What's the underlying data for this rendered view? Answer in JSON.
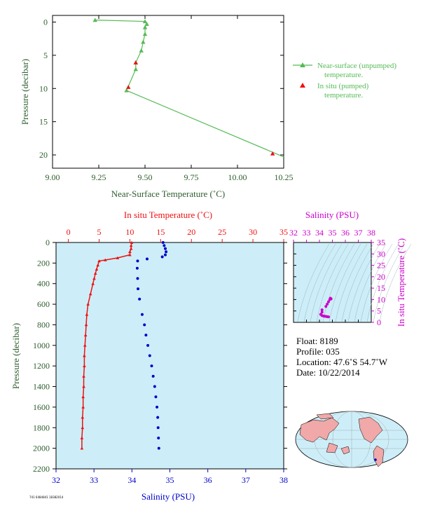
{
  "colors": {
    "top_green": "#55bb55",
    "axis_green": "#2e5e2e",
    "temp_red": "#ee1111",
    "sal_blue": "#0000cc",
    "salinity_magenta": "#cc00cc",
    "panel_bg": "#cdeef8"
  },
  "footer_code": "741 6484841 18382014",
  "meta": {
    "float": "Float:  8189",
    "profile": "Profile:  035",
    "location": "Location:  47.6˚S  54.7˚W",
    "date": "Date:  10/22/2014"
  },
  "chart_data": [
    {
      "type": "line",
      "xlabel": "Near-Surface Temperature (˚C)",
      "ylabel": "Pressure (decibar)",
      "xlim": [
        9.0,
        10.25
      ],
      "ylim": [
        22,
        -1
      ],
      "xticks": [
        "9.00",
        "9.25",
        "9.50",
        "9.75",
        "10.00",
        "10.25"
      ],
      "yticks": [
        "0",
        "5",
        "10",
        "15",
        "20"
      ],
      "series": [
        {
          "name": "Near-surface (unpumped) temperature.",
          "marker": "triangle",
          "points": [
            [
              9.23,
              -0.3
            ],
            [
              9.5,
              -0.1
            ],
            [
              9.51,
              0.3
            ],
            [
              9.5,
              0.8
            ],
            [
              9.5,
              1.8
            ],
            [
              9.49,
              3.0
            ],
            [
              9.48,
              4.3
            ],
            [
              9.45,
              6.1
            ],
            [
              9.45,
              7.1
            ],
            [
              9.4,
              10.3
            ],
            [
              10.25,
              20.3
            ]
          ]
        },
        {
          "name": "In situ (pumped) temperature.",
          "marker": "triangle",
          "points": [
            [
              9.45,
              6.1
            ],
            [
              9.41,
              9.8
            ],
            [
              10.19,
              19.8
            ]
          ]
        }
      ],
      "legend": [
        {
          "line1": "Near-surface (unpumped)",
          "line2": "temperature."
        },
        {
          "line1": "In situ (pumped)",
          "line2": "temperature."
        }
      ]
    },
    {
      "type": "scatter",
      "xlabel_top": "In situ Temperature (˚C)",
      "xlabel_bottom": "Salinity (PSU)",
      "ylabel": "Pressure (decibar)",
      "temp_lim": [
        -2,
        35
      ],
      "sal_lim": [
        32,
        38
      ],
      "ylim": [
        0,
        2200
      ],
      "temp_ticks": [
        "0",
        "5",
        "10",
        "15",
        "20",
        "25",
        "30",
        "35"
      ],
      "sal_ticks": [
        "32",
        "33",
        "34",
        "35",
        "36",
        "37",
        "38"
      ],
      "y_ticks": [
        "0",
        "200",
        "400",
        "600",
        "800",
        "1000",
        "1200",
        "1400",
        "1600",
        "1800",
        "2000",
        "2200"
      ],
      "series": [
        {
          "name": "In situ Temperature (˚C)",
          "points": [
            [
              10.3,
              0
            ],
            [
              10.2,
              30
            ],
            [
              10.2,
              60
            ],
            [
              10.0,
              90
            ],
            [
              10.0,
              120
            ],
            [
              8.0,
              150
            ],
            [
              6.0,
              170
            ],
            [
              5.0,
              180
            ],
            [
              4.8,
              220
            ],
            [
              4.6,
              260
            ],
            [
              4.4,
              300
            ],
            [
              4.2,
              350
            ],
            [
              4.0,
              400
            ],
            [
              3.6,
              500
            ],
            [
              3.2,
              600
            ],
            [
              3.0,
              700
            ],
            [
              2.9,
              800
            ],
            [
              2.8,
              900
            ],
            [
              2.7,
              1000
            ],
            [
              2.6,
              1100
            ],
            [
              2.6,
              1200
            ],
            [
              2.5,
              1300
            ],
            [
              2.5,
              1400
            ],
            [
              2.4,
              1500
            ],
            [
              2.4,
              1600
            ],
            [
              2.3,
              1700
            ],
            [
              2.3,
              1800
            ],
            [
              2.2,
              1900
            ],
            [
              2.2,
              2000
            ]
          ]
        },
        {
          "name": "Salinity (PSU)",
          "points": [
            [
              34.82,
              0
            ],
            [
              34.85,
              30
            ],
            [
              34.88,
              60
            ],
            [
              34.9,
              90
            ],
            [
              34.88,
              120
            ],
            [
              34.8,
              140
            ],
            [
              34.4,
              160
            ],
            [
              34.15,
              180
            ],
            [
              34.14,
              250
            ],
            [
              34.15,
              350
            ],
            [
              34.16,
              450
            ],
            [
              34.2,
              550
            ],
            [
              34.27,
              700
            ],
            [
              34.33,
              800
            ],
            [
              34.37,
              900
            ],
            [
              34.42,
              1000
            ],
            [
              34.47,
              1100
            ],
            [
              34.52,
              1200
            ],
            [
              34.56,
              1300
            ],
            [
              34.6,
              1400
            ],
            [
              34.63,
              1500
            ],
            [
              34.66,
              1600
            ],
            [
              34.68,
              1700
            ],
            [
              34.69,
              1800
            ],
            [
              34.7,
              1900
            ],
            [
              34.71,
              2000
            ]
          ]
        }
      ]
    },
    {
      "type": "scatter",
      "xlabel": "Salinity (PSU)",
      "ylabel": "In situ Temperature (˚C)",
      "xlim": [
        32,
        38
      ],
      "ylim": [
        0,
        35
      ],
      "xticks": [
        "32",
        "33",
        "34",
        "35",
        "36",
        "37",
        "38"
      ],
      "yticks": [
        "0",
        "5",
        "10",
        "15",
        "20",
        "25",
        "30",
        "35"
      ],
      "points": [
        [
          34.1,
          3.5
        ],
        [
          34.2,
          3.0
        ],
        [
          34.3,
          2.8
        ],
        [
          34.4,
          2.7
        ],
        [
          34.5,
          2.6
        ],
        [
          34.6,
          2.5
        ],
        [
          34.7,
          2.4
        ],
        [
          34.2,
          4.5
        ],
        [
          34.2,
          5.5
        ],
        [
          34.5,
          7.0
        ],
        [
          34.6,
          8.0
        ],
        [
          34.7,
          9.0
        ],
        [
          34.8,
          10.0
        ],
        [
          34.9,
          10.3
        ],
        [
          34.85,
          10.6
        ]
      ]
    }
  ]
}
